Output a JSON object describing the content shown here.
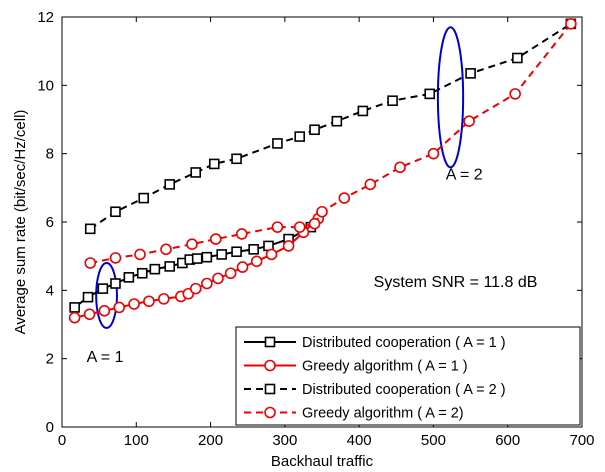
{
  "chart_data": {
    "type": "line",
    "xlabel": "Backhaul traffic",
    "ylabel": "Average sum rate (bit/sec/Hz/cell)",
    "xlim": [
      0,
      700
    ],
    "ylim": [
      0,
      12
    ],
    "xticks": [
      0,
      100,
      200,
      300,
      400,
      500,
      600,
      700
    ],
    "yticks": [
      0,
      2,
      4,
      6,
      8,
      10,
      12
    ],
    "grid": false,
    "legend_position": "bottom-right",
    "annotations": [
      {
        "text": "A = 1",
        "x": 60,
        "y": 1.9
      },
      {
        "text": "A = 2",
        "x": 530,
        "y": 7.25
      },
      {
        "text": "System SNR = 11.8 dB",
        "x": 640,
        "y": 4.1
      }
    ],
    "ellipses": [
      {
        "cx": 60,
        "cy": 3.85,
        "rx": 14,
        "ry": 0.95,
        "color": "#0000cc"
      },
      {
        "cx": 523,
        "cy": 9.65,
        "rx": 17,
        "ry": 2.05,
        "color": "#0000cc"
      }
    ],
    "series": [
      {
        "name": "Distributed cooperation ( A = 1 )",
        "color": "#000000",
        "dash": "solid",
        "marker": "square",
        "x": [
          17,
          35,
          55,
          72,
          90,
          108,
          125,
          145,
          162,
          172,
          182,
          195,
          215,
          235,
          258,
          278,
          305,
          335
        ],
        "y": [
          3.5,
          3.8,
          4.05,
          4.2,
          4.38,
          4.5,
          4.62,
          4.7,
          4.8,
          4.9,
          4.93,
          4.97,
          5.05,
          5.13,
          5.2,
          5.3,
          5.5,
          5.85
        ]
      },
      {
        "name": "Greedy algorithm ( A = 1 )",
        "color": "#ee0000",
        "dash": "solid",
        "marker": "circle",
        "x": [
          17,
          37,
          57,
          77,
          97,
          117,
          137,
          160,
          170,
          180,
          195,
          210,
          227,
          243,
          262,
          282,
          305,
          325,
          345
        ],
        "y": [
          3.2,
          3.3,
          3.4,
          3.5,
          3.6,
          3.68,
          3.75,
          3.82,
          3.9,
          4.05,
          4.2,
          4.35,
          4.5,
          4.68,
          4.85,
          5.05,
          5.3,
          5.7,
          6.1
        ]
      },
      {
        "name": "Distributed cooperation ( A = 2 )",
        "color": "#000000",
        "dash": "dashed",
        "marker": "square",
        "x": [
          38,
          72,
          110,
          145,
          180,
          205,
          235,
          290,
          320,
          340,
          370,
          405,
          445,
          495,
          550,
          613,
          685
        ],
        "y": [
          5.8,
          6.3,
          6.7,
          7.1,
          7.45,
          7.7,
          7.85,
          8.3,
          8.5,
          8.7,
          8.95,
          9.25,
          9.55,
          9.75,
          10.35,
          10.8,
          11.8
        ]
      },
      {
        "name": "Greedy algorithm ( A = 2)",
        "color": "#ee0000",
        "dash": "dashed",
        "marker": "circle",
        "x": [
          38,
          72,
          105,
          140,
          175,
          207,
          242,
          290,
          320,
          340,
          350,
          380,
          415,
          455,
          500,
          548,
          610,
          685
        ],
        "y": [
          4.8,
          4.95,
          5.05,
          5.2,
          5.35,
          5.5,
          5.65,
          5.85,
          5.85,
          5.95,
          6.3,
          6.7,
          7.1,
          7.6,
          8.0,
          8.95,
          9.75,
          11.8
        ]
      }
    ]
  }
}
